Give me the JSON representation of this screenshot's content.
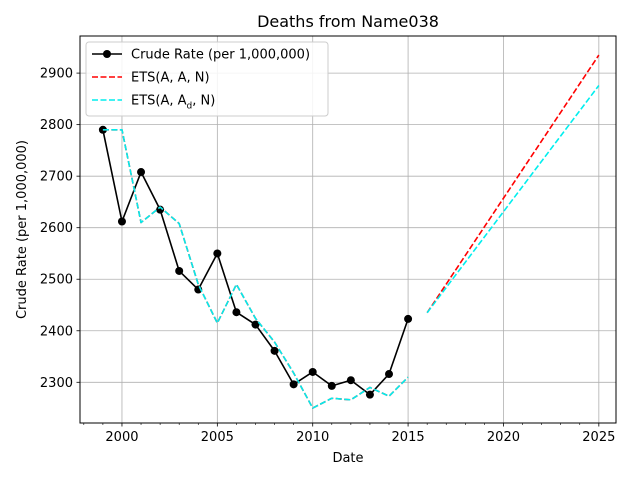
{
  "chart_data": {
    "type": "line",
    "title": "Deaths from Name038",
    "xlabel": "Date",
    "ylabel": "Crude Rate (per 1,000,000)",
    "xlim": [
      1997.8,
      2025.9
    ],
    "ylim": [
      2221,
      2972
    ],
    "x_ticks": [
      2000,
      2005,
      2010,
      2015,
      2020,
      2025
    ],
    "x_minor_tick_step": 1,
    "y_ticks": [
      2300,
      2400,
      2500,
      2600,
      2700,
      2800,
      2900
    ],
    "grid": true,
    "legend_position": "top-left",
    "series": [
      {
        "name": "Crude Rate (per 1,000,000)",
        "color": "#000000",
        "line_style": "solid",
        "marker": "circle",
        "x": [
          1999,
          2000,
          2001,
          2002,
          2003,
          2004,
          2005,
          2006,
          2007,
          2008,
          2009,
          2010,
          2011,
          2012,
          2013,
          2014,
          2015
        ],
        "y": [
          2790,
          2612,
          2708,
          2635,
          2516,
          2480,
          2550,
          2436,
          2412,
          2361,
          2296,
          2320,
          2293,
          2304,
          2276,
          2316,
          2423
        ]
      },
      {
        "name": "ETS(A, A, N)",
        "color": "#ff0000",
        "line_style": "dashed",
        "marker": "none",
        "segments": [
          {
            "x": [
              1999,
              2000,
              2001,
              2002,
              2003,
              2004,
              2005,
              2006,
              2007,
              2008,
              2009,
              2010,
              2011,
              2012,
              2013,
              2014,
              2015
            ],
            "y": [
              2790,
              2790,
              2610,
              2640,
              2608,
              2490,
              2415,
              2490,
              2424,
              2378,
              2318,
              2250,
              2269,
              2266,
              2290,
              2273,
              2310
            ]
          },
          {
            "x": [
              2016,
              2025
            ],
            "y": [
              2435,
              2935
            ]
          }
        ]
      },
      {
        "name": "ETS(A, A_d, N)",
        "color": "#00eeee",
        "line_style": "dashed",
        "marker": "none",
        "segments": [
          {
            "x": [
              1999,
              2000,
              2001,
              2002,
              2003,
              2004,
              2005,
              2006,
              2007,
              2008,
              2009,
              2010,
              2011,
              2012,
              2013,
              2014,
              2015
            ],
            "y": [
              2790,
              2790,
              2610,
              2640,
              2608,
              2490,
              2415,
              2490,
              2424,
              2378,
              2318,
              2250,
              2269,
              2266,
              2290,
              2273,
              2310
            ]
          },
          {
            "x": [
              2016,
              2025
            ],
            "y": [
              2435,
              2876
            ]
          }
        ]
      }
    ]
  },
  "legend": {
    "items": [
      {
        "prefix": "Crude Rate (per 1,000,000)",
        "sub": "",
        "suffix": ""
      },
      {
        "prefix": "ETS(A, A, N)",
        "sub": "",
        "suffix": ""
      },
      {
        "prefix": "ETS(A, A",
        "sub": "d",
        "suffix": ", N)"
      }
    ]
  }
}
